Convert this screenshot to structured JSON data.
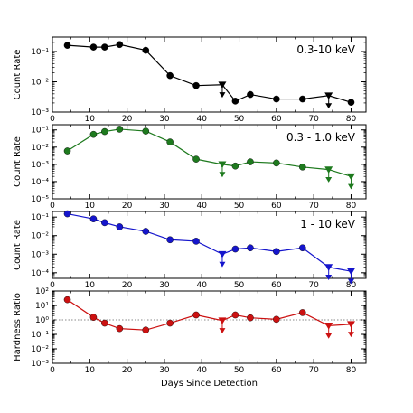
{
  "chart_data": [
    {
      "type": "line",
      "band_label": "0.3-10 keV",
      "ylabel": "Count Rate",
      "yscale": "log",
      "ylim": [
        0.001,
        0.3
      ],
      "yticks": [
        "10⁻¹",
        "10⁻²",
        "10⁻³"
      ],
      "color": "#000000",
      "x": [
        4,
        11,
        14,
        18,
        25,
        31.5,
        38.5,
        45.5,
        49,
        53,
        60,
        67,
        74,
        80
      ],
      "y": [
        0.16,
        0.14,
        0.14,
        0.17,
        0.11,
        0.016,
        0.0075,
        0.008,
        0.0023,
        0.0038,
        0.0027,
        0.0027,
        0.0035,
        0.0021
      ],
      "upper_limit": [
        false,
        false,
        false,
        false,
        false,
        false,
        false,
        true,
        false,
        false,
        false,
        false,
        true,
        false
      ]
    },
    {
      "type": "line",
      "band_label": "0.3 - 1.0 keV",
      "ylabel": "Count Rate",
      "yscale": "log",
      "ylim": [
        1e-05,
        0.2
      ],
      "yticks": [
        "10⁻¹",
        "10⁻²",
        "10⁻³",
        "10⁻⁴",
        "10⁻⁵"
      ],
      "color": "#1e7a1e",
      "x": [
        4,
        11,
        14,
        18,
        25,
        31.5,
        38.5,
        45.5,
        49,
        53,
        60,
        67,
        74,
        80
      ],
      "y": [
        0.006,
        0.055,
        0.08,
        0.11,
        0.085,
        0.02,
        0.002,
        0.001,
        0.0008,
        0.0014,
        0.0012,
        0.0007,
        0.0005,
        0.0002
      ],
      "upper_limit": [
        false,
        false,
        false,
        false,
        false,
        false,
        false,
        true,
        false,
        false,
        false,
        false,
        true,
        true
      ]
    },
    {
      "type": "line",
      "band_label": "1 - 10 keV",
      "ylabel": "Count Rate",
      "yscale": "log",
      "ylim": [
        5e-05,
        0.2
      ],
      "yticks": [
        "10⁻¹",
        "10⁻²",
        "10⁻³",
        "10⁻⁴"
      ],
      "color": "#1515cc",
      "x": [
        4,
        11,
        14,
        18,
        25,
        31.5,
        38.5,
        45.5,
        49,
        53,
        60,
        67,
        74,
        80
      ],
      "y": [
        0.15,
        0.08,
        0.05,
        0.03,
        0.017,
        0.006,
        0.005,
        0.001,
        0.0019,
        0.0022,
        0.0014,
        0.0022,
        0.0002,
        0.00012
      ],
      "upper_limit": [
        false,
        false,
        false,
        false,
        false,
        false,
        false,
        true,
        false,
        false,
        false,
        false,
        true,
        true
      ]
    },
    {
      "type": "line",
      "band_label": "",
      "ylabel": "Hardness Ratio",
      "yscale": "log",
      "ylim": [
        0.001,
        100
      ],
      "yticks": [
        "10²",
        "10¹",
        "10⁰",
        "10⁻¹",
        "10⁻²",
        "10⁻³"
      ],
      "color": "#cc1111",
      "reference_line": 1,
      "x": [
        4,
        11,
        14,
        18,
        25,
        31.5,
        38.5,
        45.5,
        49,
        53,
        60,
        67,
        74,
        80
      ],
      "y": [
        25,
        1.5,
        0.6,
        0.25,
        0.2,
        0.6,
        2.2,
        0.9,
        2.2,
        1.4,
        1.1,
        3.2,
        0.4,
        0.5
      ],
      "upper_limit": [
        false,
        false,
        false,
        false,
        false,
        false,
        false,
        true,
        false,
        false,
        false,
        false,
        true,
        true
      ]
    }
  ],
  "xaxis": {
    "label": "Days Since Detection",
    "xlim": [
      0,
      84
    ],
    "ticks": [
      "0",
      "10",
      "20",
      "30",
      "40",
      "50",
      "60",
      "70",
      "80"
    ]
  }
}
